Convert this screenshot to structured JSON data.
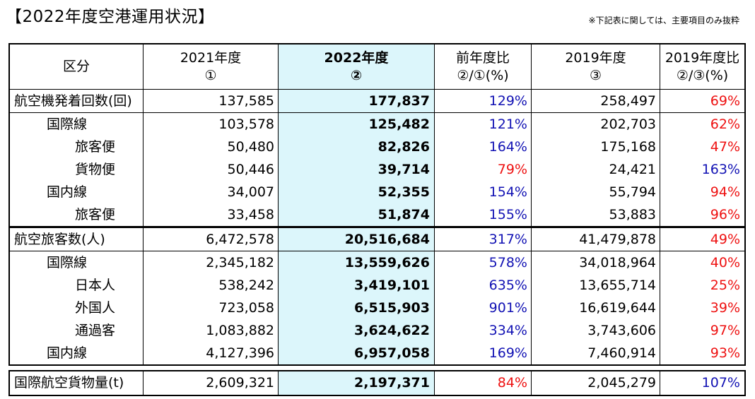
{
  "title": "【2022年度空港運用状況】",
  "note": "※下記表に関しては、主要項目のみ抜粋",
  "header": {
    "c0": "区分",
    "c1": [
      "2021年度",
      "①"
    ],
    "c2": [
      "2022年度",
      "②"
    ],
    "c3": [
      "前年度比",
      "②/①(%)"
    ],
    "c4": [
      "2019年度",
      "③"
    ],
    "c5": [
      "2019年度比",
      "②/③(%)"
    ]
  },
  "colors": {
    "highlight": "#dcf6fb",
    "up": "#1212b4",
    "down": "#ee1111"
  },
  "sections": [
    {
      "rows": [
        {
          "label": "航空機発着回数(回)",
          "v2021": "137,585",
          "v2022": "177,837",
          "yoy": "129%",
          "v2019": "258,497",
          "r2019": "69%"
        },
        {
          "label": "国際線",
          "v2021": "103,578",
          "v2022": "125,482",
          "yoy": "121%",
          "v2019": "202,703",
          "r2019": "62%"
        },
        {
          "label": "旅客便",
          "v2021": "50,480",
          "v2022": "82,826",
          "yoy": "164%",
          "v2019": "175,168",
          "r2019": "47%"
        },
        {
          "label": "貨物便",
          "v2021": "50,446",
          "v2022": "39,714",
          "yoy": "79%",
          "v2019": "24,421",
          "r2019": "163%"
        },
        {
          "label": "国内線",
          "v2021": "34,007",
          "v2022": "52,355",
          "yoy": "154%",
          "v2019": "55,794",
          "r2019": "94%"
        },
        {
          "label": "旅客便",
          "v2021": "33,458",
          "v2022": "51,874",
          "yoy": "155%",
          "v2019": "53,883",
          "r2019": "96%"
        }
      ]
    },
    {
      "rows": [
        {
          "label": "航空旅客数(人)",
          "v2021": "6,472,578",
          "v2022": "20,516,684",
          "yoy": "317%",
          "v2019": "41,479,878",
          "r2019": "49%"
        },
        {
          "label": "国際線",
          "v2021": "2,345,182",
          "v2022": "13,559,626",
          "yoy": "578%",
          "v2019": "34,018,964",
          "r2019": "40%"
        },
        {
          "label": "日本人",
          "v2021": "538,242",
          "v2022": "3,419,101",
          "yoy": "635%",
          "v2019": "13,655,714",
          "r2019": "25%"
        },
        {
          "label": "外国人",
          "v2021": "723,058",
          "v2022": "6,515,903",
          "yoy": "901%",
          "v2019": "16,619,644",
          "r2019": "39%"
        },
        {
          "label": "通過客",
          "v2021": "1,083,882",
          "v2022": "3,624,622",
          "yoy": "334%",
          "v2019": "3,743,606",
          "r2019": "97%"
        },
        {
          "label": "国内線",
          "v2021": "4,127,396",
          "v2022": "6,957,058",
          "yoy": "169%",
          "v2019": "7,460,914",
          "r2019": "93%"
        }
      ]
    },
    {
      "rows": [
        {
          "label": "国際航空貨物量(t)",
          "v2021": "2,609,321",
          "v2022": "2,197,371",
          "yoy": "84%",
          "v2019": "2,045,279",
          "r2019": "107%"
        }
      ]
    }
  ]
}
